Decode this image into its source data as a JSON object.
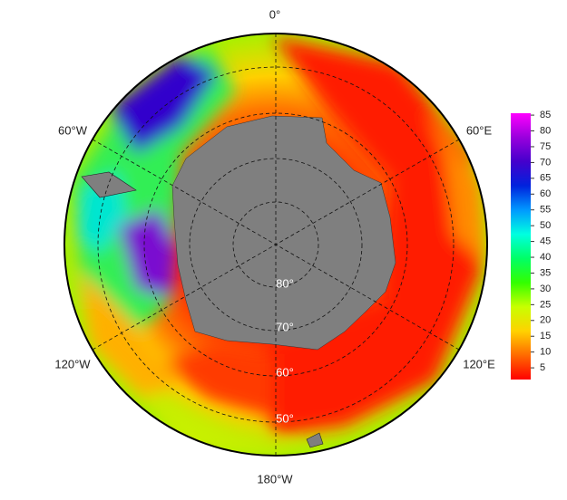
{
  "map": {
    "lon_labels": [
      "0°",
      "60°E",
      "120°E",
      "180°W",
      "120°W",
      "60°W"
    ],
    "lat_labels": [
      "80°",
      "70°",
      "60°",
      "50°"
    ],
    "colorbar": {
      "range": [
        1.3,
        85.6
      ],
      "ticks": [
        5,
        10,
        15,
        20,
        25,
        30,
        35,
        40,
        45,
        50,
        55,
        60,
        65,
        70,
        75,
        80,
        85
      ],
      "colors": [
        "#ff0000",
        "#ff6a00",
        "#ffd200",
        "#c8ff00",
        "#33ff00",
        "#00ff66",
        "#00ffe0",
        "#0099ff",
        "#0022dd",
        "#4400cc",
        "#9900dd",
        "#ff00ff"
      ]
    }
  }
}
